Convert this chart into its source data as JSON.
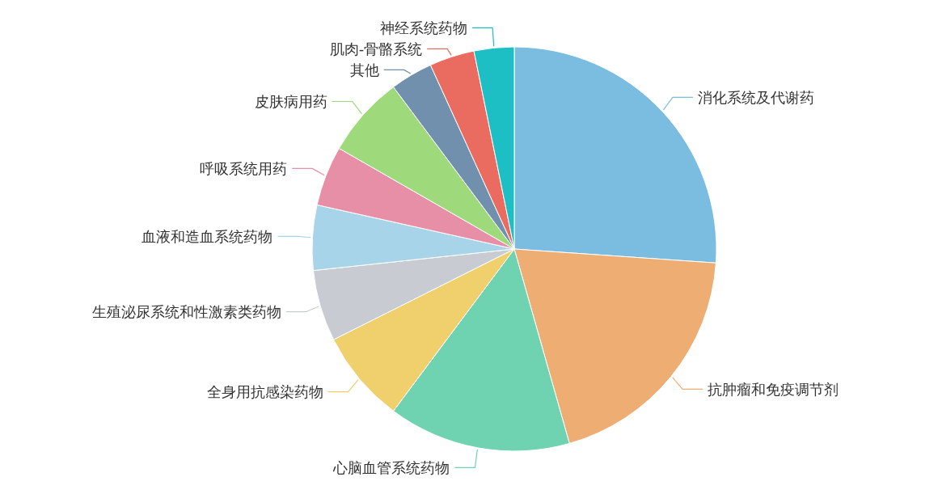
{
  "chart_data": {
    "type": "pie",
    "categories": [
      "消化系统及代谢药",
      "抗肿瘤和免疫调节剂",
      "心脑血管系统药物",
      "全身用抗感染药物",
      "生殖泌尿系统和性激素类药物",
      "血液和造血系统药物",
      "呼吸系统用药",
      "皮肤病用药",
      "其他",
      "肌肉-骨骼系统",
      "神经系统药物"
    ],
    "values": [
      26.1,
      19.5,
      14.6,
      7.4,
      5.7,
      5.2,
      4.8,
      6.5,
      3.4,
      3.6,
      3.2
    ],
    "colors": [
      "#7bbde0",
      "#eeae73",
      "#6fd3b1",
      "#f0d06c",
      "#c8ccd2",
      "#a8d4ea",
      "#e88fa8",
      "#9ed97c",
      "#7090ad",
      "#ea6b5f",
      "#1dbfc4"
    ]
  }
}
